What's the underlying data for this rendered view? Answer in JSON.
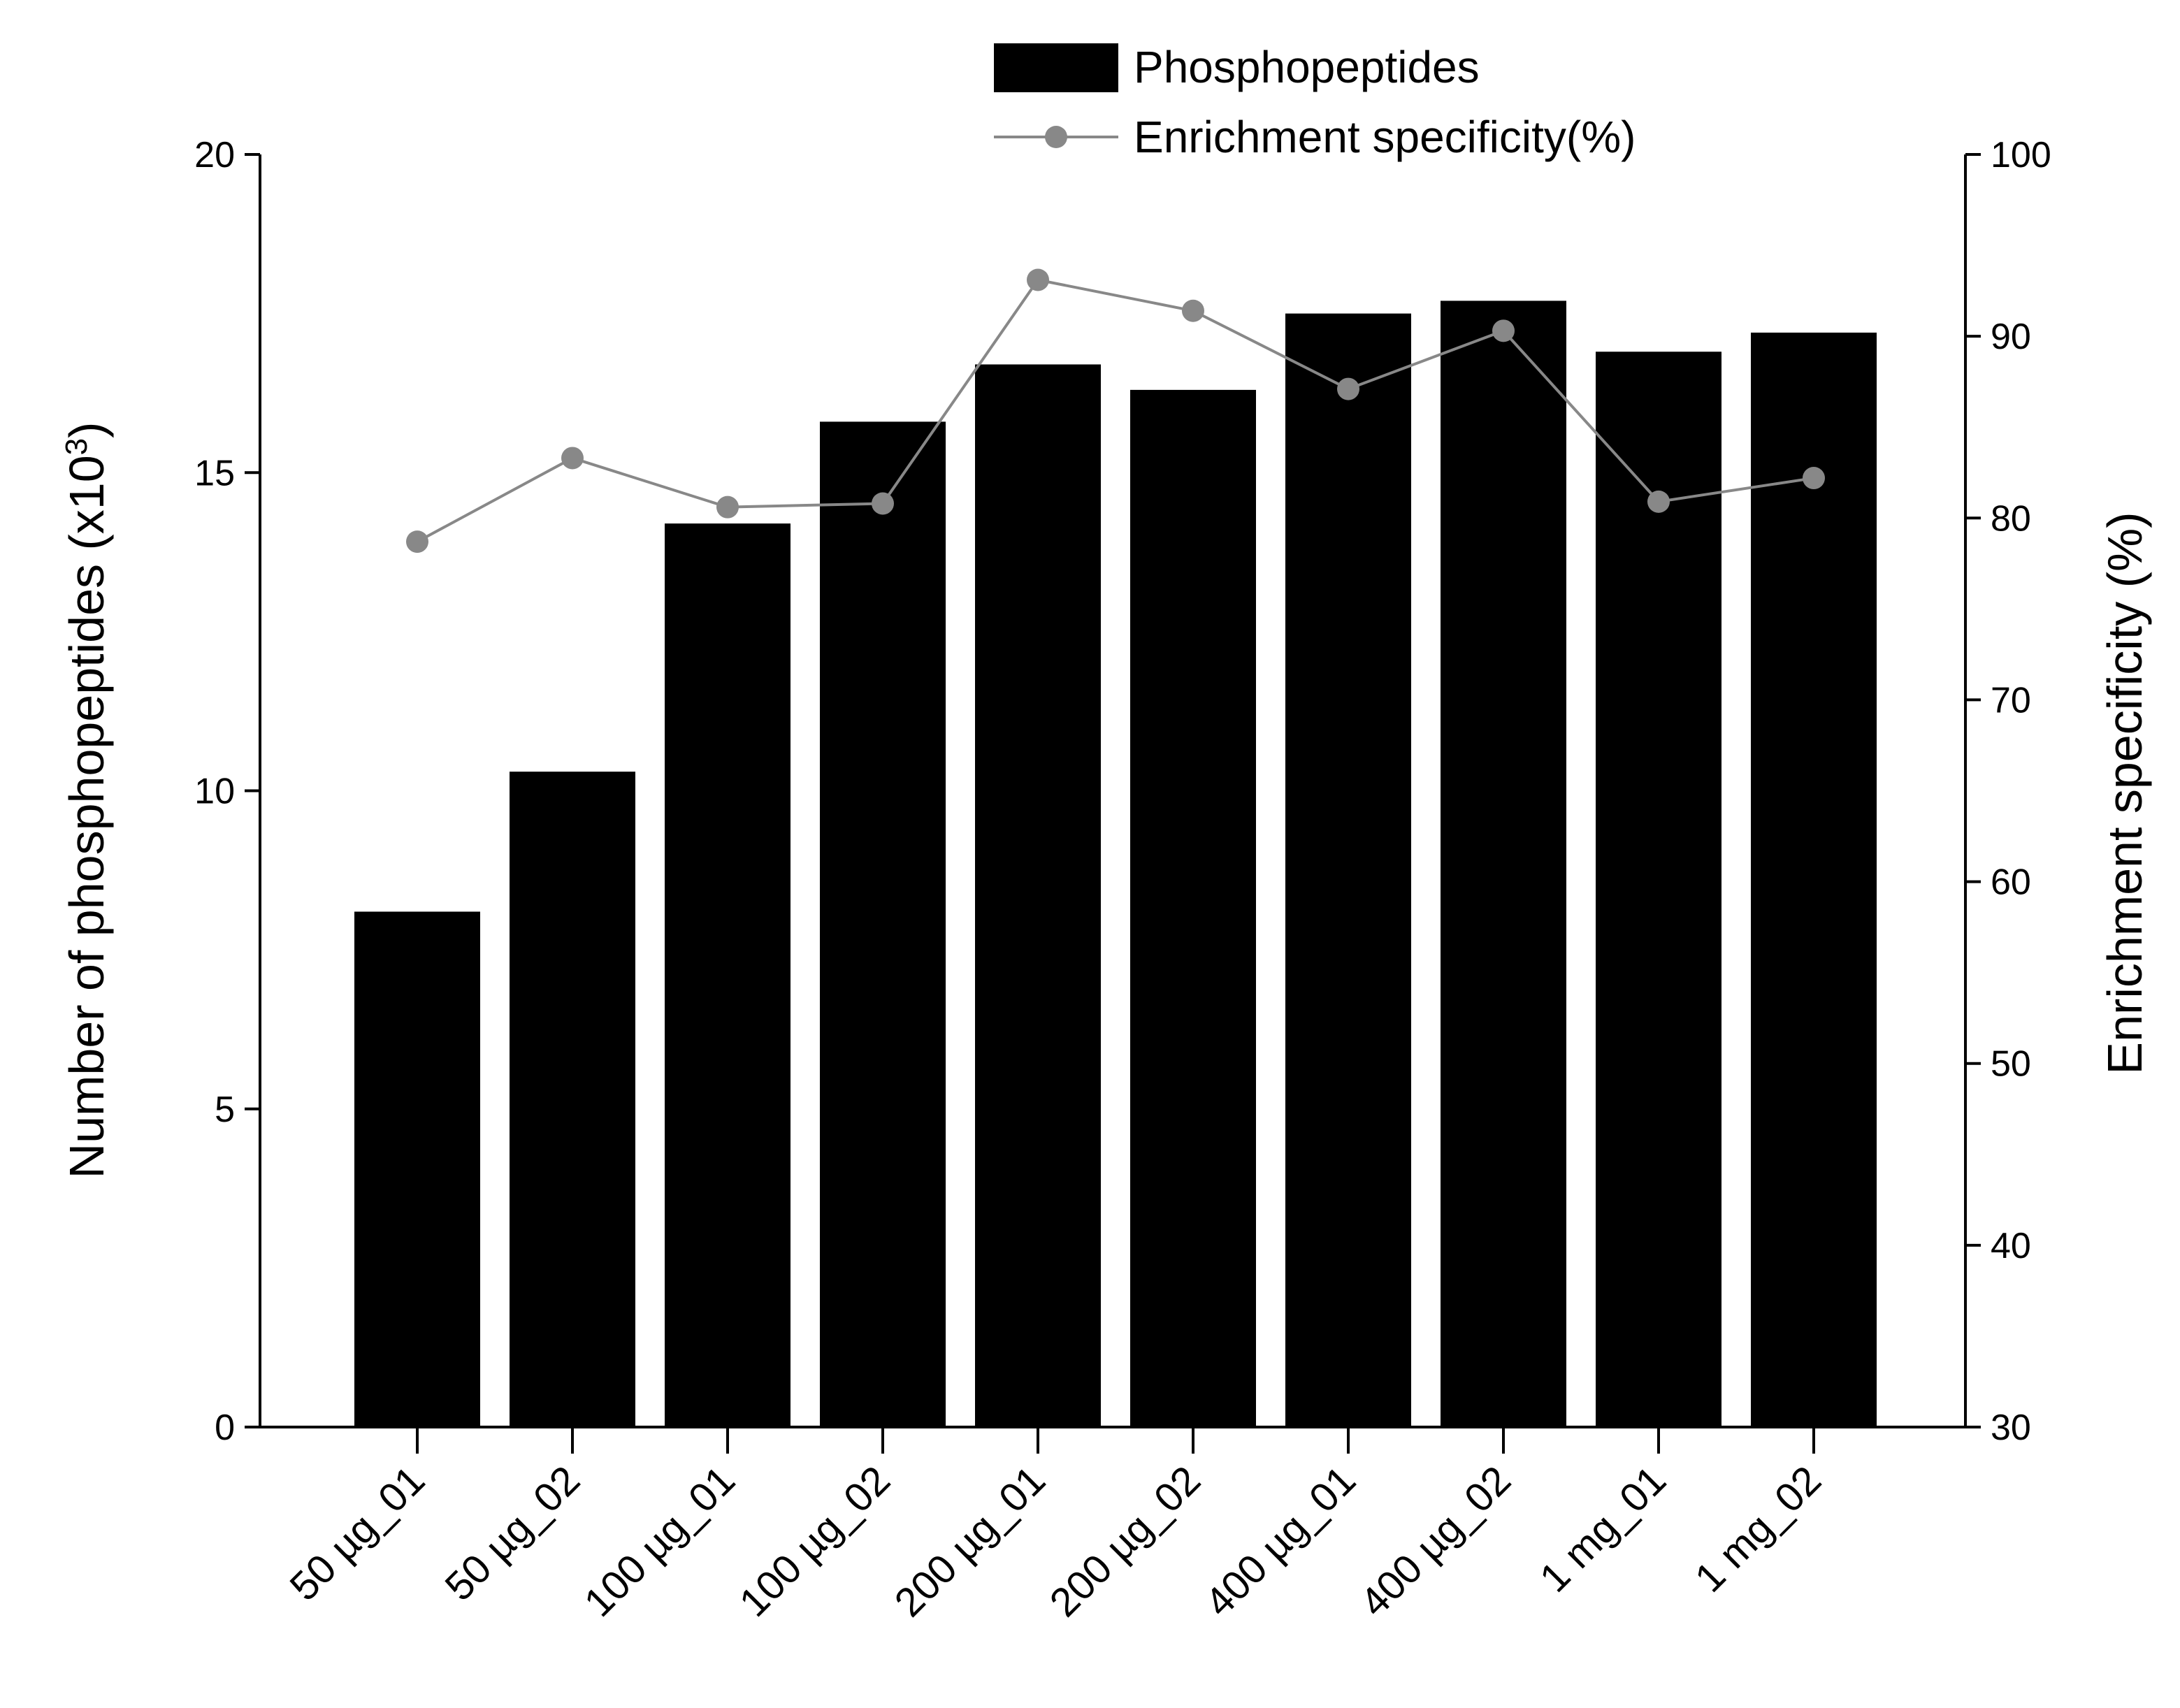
{
  "chart_data": {
    "type": "bar",
    "categories": [
      "50 µg_01",
      "50 µg_02",
      "100 µg_01",
      "100 µg_02",
      "200 µg_01",
      "200 µg_02",
      "400 µg_01",
      "400 µg_02",
      "1 mg_01",
      "1 mg_02"
    ],
    "series": [
      {
        "name": "Phosphopeptides",
        "type": "bar",
        "axis": "left",
        "color": "#000000",
        "values": [
          8.1,
          10.3,
          14.2,
          15.8,
          16.7,
          16.3,
          17.5,
          17.7,
          16.9,
          17.2
        ]
      },
      {
        "name": "Enrichment specificity(%)",
        "type": "line",
        "axis": "right",
        "color": "#888888",
        "values": [
          78.7,
          83.3,
          80.6,
          80.8,
          93.1,
          91.4,
          87.1,
          90.3,
          80.9,
          82.2
        ]
      }
    ],
    "ylabel_main": "Number of phosphopeptides (x10",
    "ylabel_sup": "3",
    "ylabel_close": ")",
    "y2label": "Enrichment specificity (%)",
    "xlabel": "",
    "ylim": [
      0,
      20
    ],
    "y2lim": [
      30,
      100
    ],
    "yticks": [
      0,
      5,
      10,
      15,
      20
    ],
    "y2ticks": [
      30,
      40,
      50,
      60,
      70,
      80,
      90,
      100
    ],
    "legend_position": "top-right",
    "grid": false
  }
}
